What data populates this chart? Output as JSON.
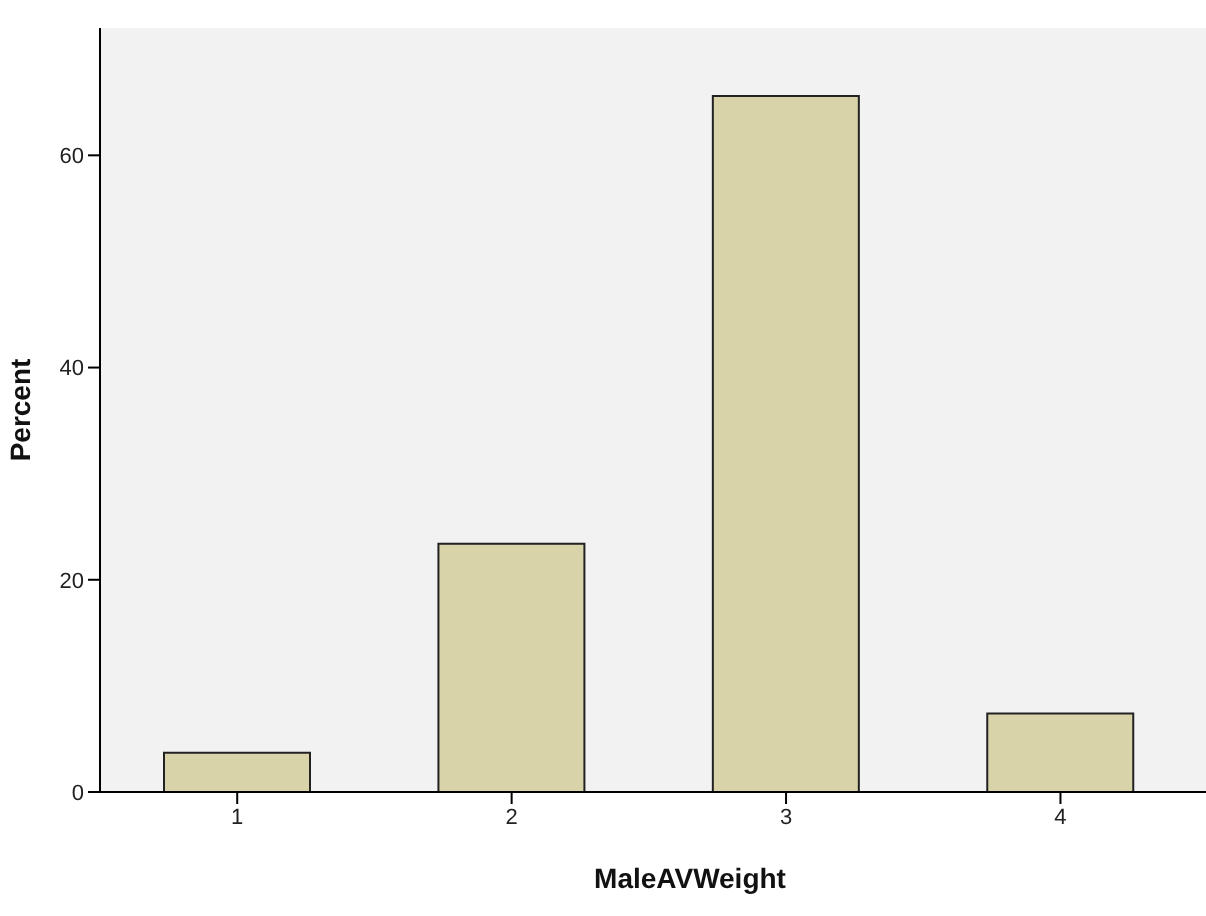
{
  "chart_data": {
    "type": "bar",
    "xlabel": "MaleAVWeight",
    "ylabel": "Percent",
    "categories": [
      "1",
      "2",
      "3",
      "4"
    ],
    "values": [
      3.7,
      23.4,
      65.6,
      7.4
    ],
    "color": "#d8d3a8",
    "ylim": [
      0,
      72
    ],
    "yticks": [
      0,
      20,
      40,
      60
    ],
    "grid": false,
    "legend": false
  }
}
